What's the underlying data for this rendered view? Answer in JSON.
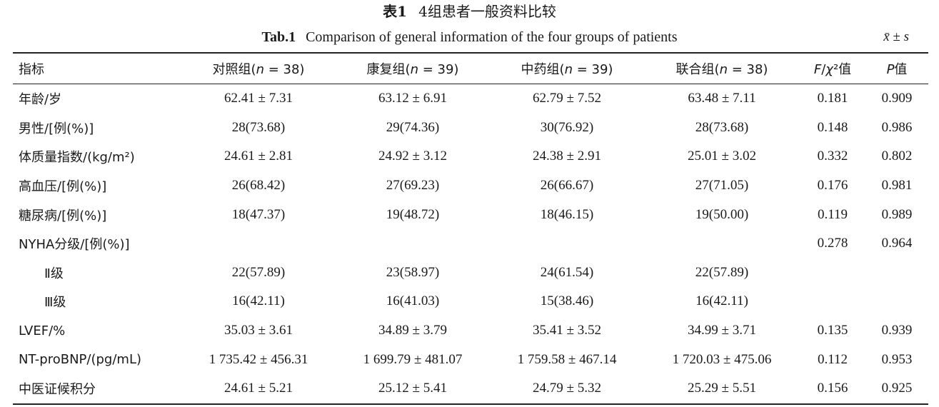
{
  "title": {
    "table_no_cn": "表1",
    "text_cn": "4组患者一般资料比较",
    "table_no_en": "Tab.1",
    "text_en": "Comparison of general information of the four groups of patients",
    "stat_note": "x̄ ± s"
  },
  "header": {
    "indicator": "指标",
    "groups": [
      "对照组(n = 38)",
      "康复组(n = 39)",
      "中药组(n = 39)",
      "联合组(n = 38)"
    ],
    "f_chi2": "F/χ²值",
    "p": "P值"
  },
  "rows": [
    {
      "label": "年龄/岁",
      "values": [
        "62.41 ± 7.31",
        "63.12 ± 6.91",
        "62.79 ± 7.52",
        "63.48 ± 7.11"
      ],
      "f": "0.181",
      "p": "0.909"
    },
    {
      "label": "男性/[例(%)]",
      "values": [
        "28(73.68)",
        "29(74.36)",
        "30(76.92)",
        "28(73.68)"
      ],
      "f": "0.148",
      "p": "0.986"
    },
    {
      "label": "体质量指数/(kg/m²)",
      "values": [
        "24.61 ± 2.81",
        "24.92 ± 3.12",
        "24.38 ± 2.91",
        "25.01 ± 3.02"
      ],
      "f": "0.332",
      "p": "0.802"
    },
    {
      "label": "高血压/[例(%)]",
      "values": [
        "26(68.42)",
        "27(69.23)",
        "26(66.67)",
        "27(71.05)"
      ],
      "f": "0.176",
      "p": "0.981"
    },
    {
      "label": "糖尿病/[例(%)]",
      "values": [
        "18(47.37)",
        "19(48.72)",
        "18(46.15)",
        "19(50.00)"
      ],
      "f": "0.119",
      "p": "0.989"
    },
    {
      "label": "NYHA分级/[例(%)]",
      "values": [
        "",
        "",
        "",
        ""
      ],
      "f": "0.278",
      "p": "0.964"
    },
    {
      "label": "Ⅱ级",
      "values": [
        "22(57.89)",
        "23(58.97)",
        "24(61.54)",
        "22(57.89)"
      ],
      "f": "",
      "p": ""
    },
    {
      "label": "Ⅲ级",
      "values": [
        "16(42.11)",
        "16(41.03)",
        "15(38.46)",
        "16(42.11)"
      ],
      "f": "",
      "p": ""
    },
    {
      "label": "LVEF/%",
      "values": [
        "35.03 ± 3.61",
        "34.89 ± 3.79",
        "35.41 ± 3.52",
        "34.99 ± 3.71"
      ],
      "f": "0.135",
      "p": "0.939"
    },
    {
      "label": "NT-proBNP/(pg/mL)",
      "values": [
        "1 735.42 ± 456.31",
        "1 699.79 ± 481.07",
        "1 759.58 ± 467.14",
        "1 720.03 ± 475.06"
      ],
      "f": "0.112",
      "p": "0.953"
    },
    {
      "label": "中医证候积分",
      "values": [
        "24.61 ± 5.21",
        "25.12 ± 5.41",
        "24.79 ± 5.32",
        "25.29 ± 5.51"
      ],
      "f": "0.156",
      "p": "0.925"
    }
  ]
}
